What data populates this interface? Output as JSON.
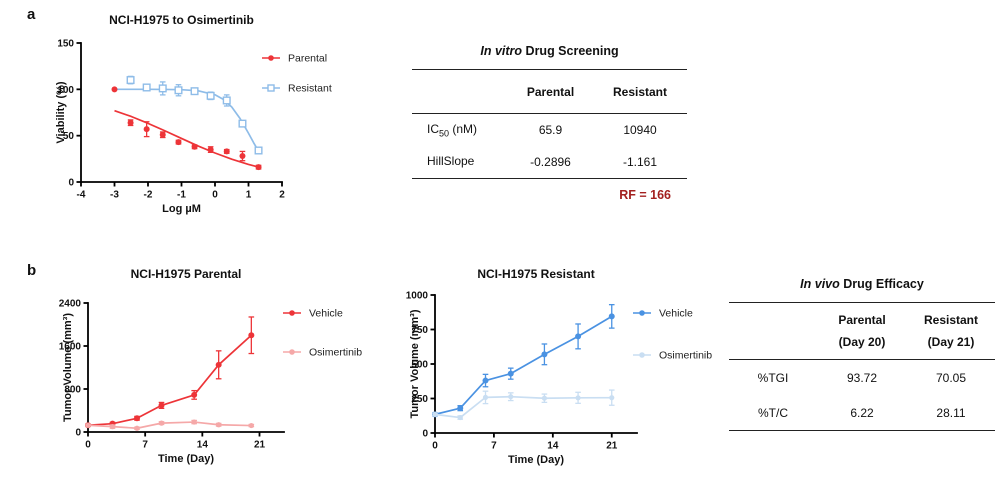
{
  "panels": {
    "a": "a",
    "b": "b"
  },
  "chart_data": [
    {
      "id": "a",
      "type": "scatter",
      "title": "NCI-H1975 to Osimertinib",
      "xlabel": "Log µM",
      "ylabel": "Viability (%)",
      "xlim": [
        -4,
        2
      ],
      "ylim": [
        0,
        150
      ],
      "xticks": [
        -4,
        -3,
        -2,
        -1,
        0,
        1,
        2
      ],
      "yticks": [
        0,
        50,
        100,
        150
      ],
      "grid": false,
      "legend_position": "right",
      "series": [
        {
          "name": "Parental",
          "color": "#ed3438",
          "marker": "circle",
          "msize": 3,
          "connect": false,
          "x": [
            -3,
            -2.52,
            -2.04,
            -1.56,
            -1.09,
            -0.61,
            -0.13,
            0.35,
            0.82,
            1.3
          ],
          "y": [
            100,
            64,
            57,
            51,
            43,
            38,
            35,
            33,
            28,
            16
          ],
          "err": [
            0,
            3,
            8,
            3,
            2,
            2,
            3,
            2,
            5,
            2
          ]
        },
        {
          "name": "Resistant",
          "color": "#8ebce8",
          "marker": "square-open",
          "msize": 3.3,
          "connect": false,
          "x": [
            -2.52,
            -2.04,
            -1.56,
            -1.09,
            -0.61,
            -0.13,
            0.35,
            0.82,
            1.3
          ],
          "y": [
            110,
            102,
            101,
            99,
            98,
            93,
            88,
            63,
            34
          ],
          "err": [
            4,
            3,
            7,
            6,
            3,
            4,
            6,
            3,
            3
          ]
        }
      ],
      "fit_lines": [
        {
          "series": "Parental",
          "color": "#ed3438",
          "points": [
            [
              -3,
              77
            ],
            [
              -2.5,
              70.7
            ],
            [
              -2,
              63.3
            ],
            [
              -1.5,
              55.3
            ],
            [
              -1,
              47
            ],
            [
              -0.5,
              38.8
            ],
            [
              0,
              31.3
            ],
            [
              0.5,
              24.6
            ],
            [
              1,
              18.9
            ],
            [
              1.3,
              16.1
            ]
          ]
        },
        {
          "series": "Resistant",
          "color": "#8ebce8",
          "points": [
            [
              -3,
              100
            ],
            [
              -2.5,
              100
            ],
            [
              -2,
              100
            ],
            [
              -1.5,
              99.9
            ],
            [
              -1,
              99.6
            ],
            [
              -0.5,
              98.4
            ],
            [
              0,
              94.1
            ],
            [
              0.25,
              89.2
            ],
            [
              0.5,
              80.9
            ],
            [
              0.75,
              68.4
            ],
            [
              1,
              52.6
            ],
            [
              1.15,
              42.6
            ],
            [
              1.3,
              33.2
            ]
          ]
        }
      ]
    },
    {
      "id": "b1",
      "type": "line",
      "title": "NCI-H1975 Parental",
      "xlabel": "Time (Day)",
      "ylabel": "Tumor Volume (mm³)",
      "xlim": [
        0,
        24
      ],
      "ylim": [
        0,
        2400
      ],
      "xticks": [
        0,
        7,
        14,
        21
      ],
      "yticks": [
        0,
        800,
        1600,
        2400
      ],
      "grid": false,
      "legend_position": "right",
      "series": [
        {
          "name": "Vehicle",
          "color": "#ed3438",
          "marker": "circle",
          "msize": 3,
          "connect": true,
          "x": [
            0,
            3,
            6,
            9,
            13,
            16,
            20
          ],
          "y": [
            125,
            155,
            255,
            495,
            690,
            1250,
            1800
          ],
          "err": [
            15,
            25,
            35,
            55,
            80,
            260,
            340
          ]
        },
        {
          "name": "Osimertinib",
          "color": "#f5a8a8",
          "marker": "circle",
          "msize": 2.6,
          "connect": true,
          "x": [
            0,
            3,
            6,
            9,
            13,
            16,
            20
          ],
          "y": [
            125,
            100,
            70,
            165,
            185,
            135,
            120
          ],
          "err": [
            15,
            30,
            20,
            25,
            30,
            25,
            20
          ]
        }
      ],
      "fit_lines": []
    },
    {
      "id": "b2",
      "type": "line",
      "title": "NCI-H1975 Resistant",
      "xlabel": "Time (Day)",
      "ylabel": "Tumor Volume (mm³)",
      "xlim": [
        0,
        24
      ],
      "ylim": [
        0,
        1000
      ],
      "xticks": [
        0,
        7,
        14,
        21
      ],
      "yticks": [
        0,
        250,
        500,
        750,
        1000
      ],
      "grid": false,
      "legend_position": "right",
      "series": [
        {
          "name": "Vehicle",
          "color": "#4a92e2",
          "marker": "circle",
          "msize": 3,
          "connect": true,
          "x": [
            0,
            3,
            6,
            9,
            13,
            17,
            21
          ],
          "y": [
            135,
            180,
            380,
            430,
            570,
            700,
            845
          ],
          "err": [
            12,
            18,
            45,
            40,
            75,
            90,
            85
          ]
        },
        {
          "name": "Osimertinib",
          "color": "#c9def2",
          "marker": "circle",
          "msize": 2.6,
          "connect": true,
          "x": [
            0,
            3,
            6,
            9,
            13,
            17,
            21
          ],
          "y": [
            135,
            112,
            258,
            263,
            252,
            255,
            256
          ],
          "err": [
            10,
            12,
            45,
            28,
            30,
            40,
            55
          ]
        }
      ],
      "fit_lines": []
    }
  ],
  "tables": {
    "in_vitro": {
      "title_italic": "In vitro",
      "title_rest": " Drug Screening",
      "col_headers": [
        "Parental",
        "Resistant"
      ],
      "rows": [
        {
          "label_main": "IC",
          "label_sub": "50",
          "label_rest": " (nM)",
          "values": [
            "65.9",
            "10940"
          ]
        },
        {
          "label_main": "HillSlope",
          "label_sub": "",
          "label_rest": "",
          "values": [
            "-0.2896",
            "-1.161"
          ]
        }
      ],
      "footnote": "RF = 166",
      "footnote_color": "#a3201f"
    },
    "in_vivo": {
      "title_italic": "In vivo",
      "title_rest": " Drug Efficacy",
      "col_headers_line1": [
        "Parental",
        "Resistant"
      ],
      "col_headers_line2": [
        "(Day 20)",
        "(Day 21)"
      ],
      "rows": [
        {
          "label": "%TGI",
          "values": [
            "93.72",
            "70.05"
          ]
        },
        {
          "label": "%T/C",
          "values": [
            "6.22",
            "28.11"
          ]
        }
      ]
    }
  }
}
